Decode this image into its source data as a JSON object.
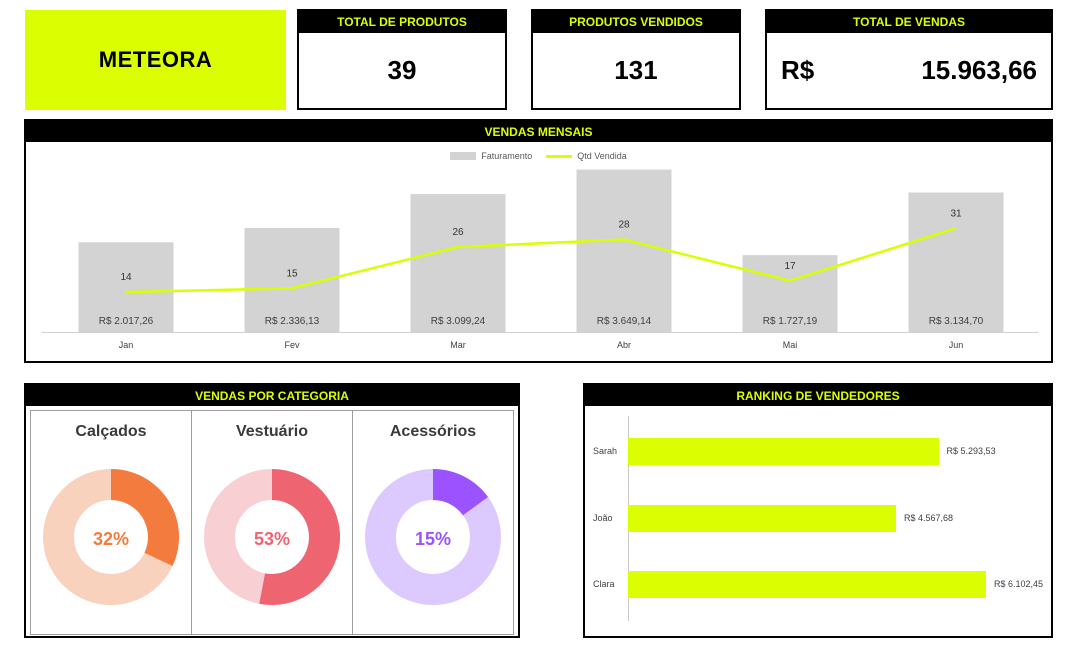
{
  "brand": {
    "name": "METEORA",
    "color": "#dbff00"
  },
  "kpis": {
    "total_produtos": {
      "label": "TOTAL DE PRODUTOS",
      "value": "39"
    },
    "produtos_vendidos": {
      "label": "PRODUTOS VENDIDOS",
      "value": "131"
    },
    "total_vendas": {
      "label": "TOTAL DE VENDAS",
      "currency": "R$",
      "value": "15.963,66"
    }
  },
  "monthly": {
    "title": "VENDAS MENSAIS",
    "chart_data": {
      "type": "bar",
      "categories": [
        "Jan",
        "Fev",
        "Mar",
        "Abr",
        "Mai",
        "Jun"
      ],
      "series": [
        {
          "name": "Faturamento",
          "type": "bar",
          "values": [
            2017.26,
            2336.13,
            3099.24,
            3649.14,
            1727.19,
            3134.7
          ],
          "labels": [
            "R$ 2.017,26",
            "R$ 2.336,13",
            "R$ 3.099,24",
            "R$ 3.649,14",
            "R$ 1.727,19",
            "R$ 3.134,70"
          ],
          "color": "#d3d3d3"
        },
        {
          "name": "Qtd Vendida",
          "type": "line",
          "values": [
            14,
            15,
            26,
            28,
            17,
            31
          ],
          "color": "#dbff00"
        }
      ],
      "legend": "top-center"
    }
  },
  "categories": {
    "title": "VENDAS POR CATEGORIA",
    "items": [
      {
        "name": "Calçados",
        "percent": 32,
        "label": "32%",
        "color": "#f47b3e",
        "track": "#f8d2bd"
      },
      {
        "name": "Vestuário",
        "percent": 53,
        "label": "53%",
        "color": "#ef6471",
        "track": "#f8cfd3"
      },
      {
        "name": "Acessórios",
        "percent": 15,
        "label": "15%",
        "color": "#9b52ff",
        "track": "#dccaff"
      }
    ]
  },
  "ranking": {
    "title": "RANKING DE VENDEDORES",
    "chart_data": {
      "type": "bar",
      "orientation": "horizontal",
      "categories": [
        "Sarah",
        "João",
        "Clara"
      ],
      "values": [
        5293.53,
        4567.68,
        6102.45
      ],
      "labels": [
        "R$ 5.293,53",
        "R$ 4.567,68",
        "R$ 6.102,45"
      ],
      "color": "#dbff00"
    }
  }
}
